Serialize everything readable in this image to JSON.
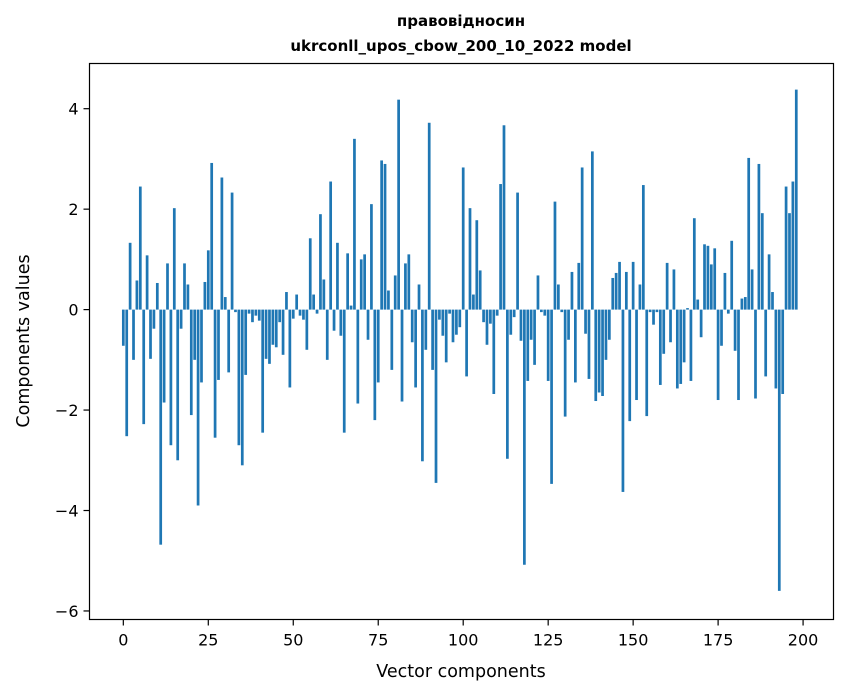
{
  "chart_data": {
    "type": "bar",
    "title": "правовідносин",
    "subtitle": "ukrconll_upos_cbow_200_10_2022 model",
    "xlabel": "Vector components",
    "ylabel": "Components values",
    "xlim": [
      -9.95,
      208.95
    ],
    "ylim": [
      -6.17,
      4.9
    ],
    "xticks": [
      0,
      25,
      50,
      75,
      100,
      125,
      150,
      175,
      200
    ],
    "yticks": [
      -6,
      -4,
      -2,
      0,
      2,
      4
    ],
    "ytick_labels": [
      "−6",
      "−4",
      "−2",
      "0",
      "2",
      "4"
    ],
    "bar_color": "#1f77b4",
    "values": [
      -0.72,
      -2.52,
      1.33,
      -1.0,
      0.58,
      2.45,
      -2.28,
      1.08,
      -0.98,
      -0.38,
      0.53,
      -4.68,
      -1.85,
      0.92,
      -2.7,
      2.02,
      -3.0,
      -0.38,
      0.92,
      0.5,
      -2.1,
      -1.0,
      -3.9,
      -1.45,
      0.55,
      1.18,
      2.92,
      -2.55,
      -1.4,
      2.63,
      0.25,
      -1.25,
      2.33,
      -0.05,
      -2.7,
      -3.1,
      -1.3,
      -0.08,
      -0.25,
      -0.12,
      -0.22,
      -2.45,
      -0.98,
      -1.08,
      -0.7,
      -0.75,
      -0.25,
      -0.9,
      0.35,
      -1.55,
      -0.18,
      0.3,
      -0.12,
      -0.2,
      -0.8,
      1.42,
      0.3,
      -0.08,
      1.9,
      0.6,
      -1.0,
      2.55,
      -0.42,
      1.33,
      -0.52,
      -2.45,
      1.12,
      0.08,
      3.4,
      -1.87,
      1.0,
      1.1,
      -0.6,
      2.1,
      -2.2,
      -1.45,
      2.97,
      2.9,
      0.38,
      -1.2,
      0.68,
      4.18,
      -1.83,
      0.92,
      1.1,
      -0.65,
      -1.55,
      0.5,
      -3.02,
      -0.8,
      3.72,
      -1.2,
      -3.45,
      -0.2,
      -0.52,
      -1.05,
      -0.08,
      -0.65,
      -0.5,
      -0.35,
      2.83,
      -1.33,
      2.02,
      0.3,
      1.78,
      0.78,
      -0.25,
      -0.7,
      -0.28,
      -1.68,
      -0.12,
      2.5,
      3.67,
      -2.97,
      -0.5,
      -0.15,
      2.33,
      -0.62,
      -5.08,
      -1.42,
      -0.6,
      -1.1,
      0.68,
      -0.05,
      -0.12,
      -1.42,
      -3.47,
      2.15,
      0.5,
      -0.05,
      -2.13,
      -0.6,
      0.75,
      -1.45,
      0.93,
      2.83,
      -0.48,
      -1.38,
      3.15,
      -1.82,
      -1.65,
      -1.72,
      -1.0,
      -0.6,
      0.63,
      0.73,
      0.95,
      -3.63,
      0.75,
      -2.22,
      0.95,
      -1.8,
      0.5,
      2.48,
      -2.12,
      -0.05,
      -0.3,
      -0.05,
      -1.5,
      -0.88,
      0.93,
      -0.65,
      0.8,
      -1.57,
      -1.48,
      -1.05,
      0.03,
      -1.42,
      1.82,
      0.2,
      -0.55,
      1.3,
      1.27,
      0.9,
      1.22,
      -1.8,
      -0.72,
      0.73,
      -0.08,
      1.37,
      -0.82,
      -1.8,
      0.22,
      0.25,
      3.02,
      0.8,
      -1.77,
      2.9,
      1.92,
      -1.33,
      1.1,
      0.35,
      -1.57,
      -5.6,
      -1.68,
      2.45,
      1.92,
      2.55,
      4.38
    ]
  }
}
